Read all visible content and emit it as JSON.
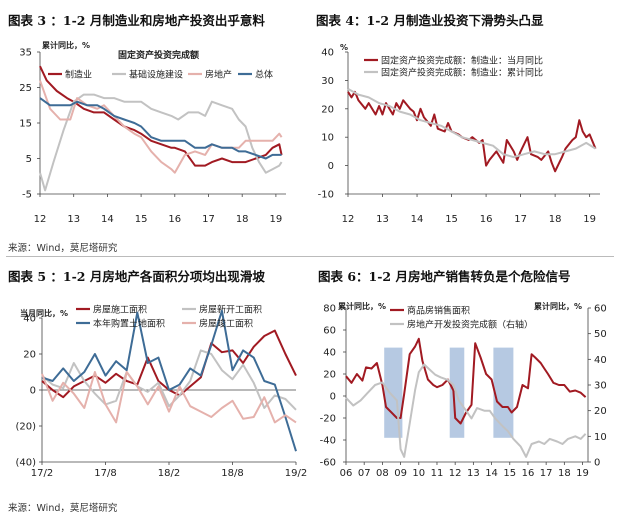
{
  "source_text": "来源：Wind，莫尼塔研究",
  "colors": {
    "red": "#a11a22",
    "gray": "#c2c2c2",
    "pink": "#e5b1ac",
    "blue": "#3e6c96",
    "band": "#9eb7d8"
  },
  "chart_data": [
    {
      "id": "fig3",
      "type": "line",
      "title": "图表 3 ：1-2 月制造业和房地产投资出乎意料",
      "subtitle": "固定资产投资完成额",
      "ylabel": "累计同比，%",
      "x_ticks": [
        "12",
        "13",
        "14",
        "15",
        "16",
        "17",
        "18",
        "19"
      ],
      "xlim": [
        2012.0,
        2019.3
      ],
      "ylim": [
        -5,
        35
      ],
      "y_ticks": [
        "-5",
        "5",
        "15",
        "25",
        "35"
      ],
      "series": [
        {
          "name": "制造业",
          "color": "#a11a22",
          "x": [
            2012.0,
            2012.2,
            2012.5,
            2012.8,
            2013.0,
            2013.3,
            2013.6,
            2013.9,
            2014.2,
            2014.5,
            2014.8,
            2015.0,
            2015.3,
            2015.6,
            2015.9,
            2016.0,
            2016.3,
            2016.6,
            2016.9,
            2017.1,
            2017.4,
            2017.7,
            2017.9,
            2018.1,
            2018.4,
            2018.7,
            2018.9,
            2019.1,
            2019.17
          ],
          "y": [
            31,
            27,
            24,
            22,
            21,
            19,
            18,
            18,
            16,
            14,
            13,
            12,
            10,
            9,
            8,
            8,
            7,
            3,
            3,
            4,
            5,
            4,
            4,
            4,
            5,
            6,
            8,
            9,
            6
          ]
        },
        {
          "name": "基础设施建设",
          "color": "#c2c2c2",
          "x": [
            2012.0,
            2012.15,
            2012.4,
            2012.7,
            2013.0,
            2013.3,
            2013.6,
            2013.9,
            2014.2,
            2014.5,
            2014.8,
            2015.0,
            2015.3,
            2015.6,
            2015.9,
            2016.1,
            2016.4,
            2016.7,
            2016.9,
            2017.1,
            2017.4,
            2017.7,
            2017.9,
            2018.1,
            2018.3,
            2018.5,
            2018.7,
            2018.9,
            2019.1,
            2019.17
          ],
          "y": [
            1,
            -4,
            4,
            13,
            21,
            23,
            23,
            22,
            22,
            21,
            21,
            21,
            19,
            18,
            17,
            16,
            18,
            18,
            17,
            21,
            20,
            19,
            16,
            14,
            8,
            4,
            1,
            2,
            3,
            4
          ]
        },
        {
          "name": "房地产",
          "color": "#e5b1ac",
          "x": [
            2012.0,
            2012.3,
            2012.6,
            2012.9,
            2013.1,
            2013.4,
            2013.7,
            2013.9,
            2014.2,
            2014.5,
            2014.8,
            2015.0,
            2015.3,
            2015.6,
            2015.9,
            2016.0,
            2016.3,
            2016.6,
            2016.9,
            2017.1,
            2017.4,
            2017.7,
            2017.9,
            2018.1,
            2018.4,
            2018.7,
            2018.9,
            2019.1,
            2019.17
          ],
          "y": [
            27,
            19,
            16,
            16,
            22,
            20,
            19,
            20,
            17,
            14,
            12,
            11,
            7,
            4,
            2,
            1,
            6,
            7,
            6,
            9,
            8,
            8,
            8,
            10,
            10,
            10,
            10,
            12,
            11
          ]
        },
        {
          "name": "总体",
          "color": "#3e6c96",
          "x": [
            2012.0,
            2012.3,
            2012.6,
            2012.9,
            2013.1,
            2013.4,
            2013.7,
            2013.9,
            2014.2,
            2014.5,
            2014.8,
            2015.0,
            2015.3,
            2015.6,
            2015.9,
            2016.0,
            2016.3,
            2016.6,
            2016.9,
            2017.1,
            2017.4,
            2017.7,
            2017.9,
            2018.1,
            2018.4,
            2018.7,
            2018.9,
            2019.1,
            2019.17
          ],
          "y": [
            22,
            20,
            20,
            20,
            21,
            20,
            20,
            19,
            17,
            16,
            15,
            14,
            11,
            10,
            10,
            10,
            10,
            8,
            8,
            9,
            8,
            8,
            7,
            7,
            6,
            5,
            6,
            6,
            6
          ]
        }
      ]
    },
    {
      "id": "fig4",
      "type": "line",
      "title": "图表 4：1-2 月制造业投资下滑势头凸显",
      "ylabel": "%",
      "x_ticks": [
        "12",
        "13",
        "14",
        "15",
        "16",
        "17",
        "18",
        "19"
      ],
      "xlim": [
        2012.0,
        2019.3
      ],
      "ylim": [
        -10,
        40
      ],
      "y_ticks": [
        "-10",
        "0",
        "10",
        "20",
        "30",
        "40"
      ],
      "series": [
        {
          "name": "固定资产投资完成额：制造业：当月同比",
          "color": "#a11a22",
          "x": [
            2012.0,
            2012.1,
            2012.2,
            2012.3,
            2012.5,
            2012.6,
            2012.8,
            2012.9,
            2013.0,
            2013.1,
            2013.3,
            2013.4,
            2013.5,
            2013.6,
            2013.8,
            2013.9,
            2014.0,
            2014.1,
            2014.2,
            2014.4,
            2014.5,
            2014.6,
            2014.8,
            2014.9,
            2015.0,
            2015.2,
            2015.3,
            2015.5,
            2015.6,
            2015.8,
            2015.9,
            2016.0,
            2016.1,
            2016.3,
            2016.4,
            2016.5,
            2016.6,
            2016.8,
            2016.9,
            2017.0,
            2017.2,
            2017.3,
            2017.5,
            2017.6,
            2017.8,
            2017.9,
            2018.0,
            2018.2,
            2018.3,
            2018.5,
            2018.6,
            2018.7,
            2018.8,
            2018.9,
            2019.0,
            2019.17
          ],
          "y": [
            26,
            24,
            26,
            23,
            20,
            22,
            18,
            21,
            18,
            22,
            18,
            22,
            20,
            23,
            20,
            19,
            16,
            20,
            17,
            14,
            18,
            13,
            12,
            15,
            12,
            11,
            10,
            9,
            10,
            8,
            9,
            0,
            2,
            5,
            3,
            1,
            9,
            5,
            2,
            5,
            10,
            4,
            3,
            2,
            5,
            1,
            -2,
            3,
            6,
            9,
            10,
            16,
            12,
            10,
            11,
            6
          ]
        },
        {
          "name": "固定资产投资完成额：制造业：累计同比",
          "color": "#c2c2c2",
          "x": [
            2012.0,
            2012.3,
            2012.6,
            2012.9,
            2013.2,
            2013.5,
            2013.8,
            2014.1,
            2014.4,
            2014.7,
            2015.0,
            2015.3,
            2015.6,
            2015.9,
            2016.2,
            2016.5,
            2016.8,
            2017.1,
            2017.4,
            2017.7,
            2018.0,
            2018.3,
            2018.6,
            2018.9,
            2019.17
          ],
          "y": [
            27,
            25,
            24,
            22,
            21,
            19,
            18,
            16,
            15,
            14,
            12,
            10,
            9,
            8,
            7,
            4,
            3,
            4,
            5,
            4,
            4,
            5,
            6,
            8,
            6
          ]
        }
      ]
    },
    {
      "id": "fig5",
      "type": "line",
      "title": "图表 5 ：1-2 月房地产各面积分项均出现滑坡",
      "ylabel": "当月同比，%",
      "x_ticks": [
        "17/2",
        "17/8",
        "18/2",
        "18/8",
        "19/2"
      ],
      "xlim": [
        0,
        24
      ],
      "ylim": [
        -40,
        40
      ],
      "y_ticks": [
        "(40)",
        "(20)",
        "0",
        "20",
        "40"
      ],
      "series": [
        {
          "name": "房屋施工面积",
          "color": "#a11a22",
          "x": [
            0,
            1,
            2,
            3,
            4,
            5,
            6,
            7,
            8,
            9,
            10,
            11,
            12,
            13,
            14,
            15,
            16,
            17,
            18,
            19,
            20,
            21,
            22,
            23,
            24
          ],
          "y": [
            5,
            0,
            -4,
            2,
            5,
            8,
            4,
            9,
            5,
            3,
            18,
            5,
            0,
            -3,
            2,
            7,
            26,
            21,
            22,
            15,
            24,
            30,
            33,
            20,
            8
          ]
        },
        {
          "name": "房屋新开工面积",
          "color": "#c2c2c2",
          "x": [
            0,
            1,
            2,
            3,
            4,
            5,
            6,
            7,
            8,
            9,
            10,
            11,
            12,
            13,
            14,
            15,
            16,
            17,
            18,
            19,
            20,
            21,
            22,
            23,
            24
          ],
          "y": [
            8,
            3,
            1,
            15,
            5,
            -2,
            -8,
            -6,
            10,
            2,
            -1,
            4,
            -9,
            -3,
            5,
            22,
            20,
            11,
            6,
            14,
            4,
            -10,
            -3,
            -5,
            -11
          ]
        },
        {
          "name": "本年购置土地面积",
          "color": "#3e6c96",
          "x": [
            0,
            1,
            2,
            3,
            4,
            5,
            6,
            7,
            8,
            9,
            10,
            11,
            12,
            13,
            14,
            15,
            16,
            17,
            18,
            19,
            20,
            21,
            22,
            23,
            24
          ],
          "y": [
            7,
            5,
            12,
            5,
            10,
            20,
            8,
            16,
            11,
            43,
            15,
            18,
            0,
            3,
            12,
            8,
            25,
            44,
            11,
            22,
            18,
            5,
            3,
            -15,
            -34
          ]
        },
        {
          "name": "房屋竣工面积",
          "color": "#e5b1ac",
          "x": [
            0,
            1,
            2,
            3,
            4,
            5,
            6,
            7,
            8,
            9,
            10,
            11,
            12,
            13,
            14,
            15,
            16,
            17,
            18,
            19,
            20,
            21,
            22,
            23,
            24
          ],
          "y": [
            9,
            -6,
            4,
            -2,
            -10,
            10,
            -8,
            -18,
            10,
            2,
            -8,
            2,
            -12,
            2,
            -9,
            -12,
            -15,
            -10,
            -6,
            -16,
            -15,
            -4,
            -18,
            -14,
            -18
          ]
        }
      ]
    },
    {
      "id": "fig6",
      "type": "line",
      "title": "图表 6：1-2 月房地产销售转负是个危险信号",
      "ylabel": "累计同比，%",
      "ylabel_right": "累计同比，%",
      "x_ticks": [
        "06",
        "07",
        "08",
        "09",
        "10",
        "11",
        "12",
        "13",
        "14",
        "15",
        "16",
        "17",
        "18",
        "19"
      ],
      "xlim": [
        2006.0,
        2019.3
      ],
      "ylim": [
        -60,
        80
      ],
      "y_ticks": [
        "-60",
        "-40",
        "-20",
        "0",
        "20",
        "40",
        "60",
        "80"
      ],
      "ylim_right": [
        0,
        60
      ],
      "y_ticks_right": [
        "0",
        "10",
        "20",
        "30",
        "40",
        "50",
        "60"
      ],
      "shaded_periods": [
        [
          2008.1,
          2009.1
        ],
        [
          2011.7,
          2012.5
        ],
        [
          2014.1,
          2015.2
        ]
      ],
      "series": [
        {
          "name": "商品房销售面积",
          "color": "#a11a22",
          "axis": "left",
          "x": [
            2006.0,
            2006.3,
            2006.6,
            2006.9,
            2007.1,
            2007.4,
            2007.7,
            2008.0,
            2008.2,
            2008.5,
            2008.8,
            2009.0,
            2009.2,
            2009.5,
            2009.8,
            2010.0,
            2010.2,
            2010.5,
            2010.8,
            2011.0,
            2011.3,
            2011.6,
            2011.9,
            2012.0,
            2012.3,
            2012.6,
            2012.9,
            2013.1,
            2013.4,
            2013.7,
            2014.0,
            2014.3,
            2014.6,
            2014.9,
            2015.1,
            2015.4,
            2015.7,
            2016.0,
            2016.2,
            2016.4,
            2016.7,
            2016.9,
            2017.1,
            2017.4,
            2017.7,
            2018.0,
            2018.3,
            2018.6,
            2018.9,
            2019.17
          ],
          "y": [
            18,
            12,
            20,
            14,
            26,
            25,
            30,
            10,
            -10,
            -15,
            -20,
            -20,
            2,
            38,
            45,
            52,
            32,
            15,
            10,
            8,
            10,
            15,
            5,
            -20,
            -25,
            -15,
            -8,
            48,
            35,
            20,
            15,
            -5,
            -10,
            -10,
            -15,
            -10,
            10,
            7,
            38,
            35,
            30,
            25,
            20,
            12,
            10,
            10,
            4,
            5,
            3,
            -1
          ]
        },
        {
          "name": "房地产开发投资完成额（右轴）",
          "color": "#c2c2c2",
          "axis": "right",
          "x": [
            2006.0,
            2006.4,
            2006.8,
            2007.2,
            2007.6,
            2008.0,
            2008.4,
            2008.8,
            2009.0,
            2009.2,
            2009.5,
            2009.8,
            2010.0,
            2010.3,
            2010.6,
            2010.9,
            2011.2,
            2011.6,
            2011.9,
            2012.2,
            2012.6,
            2012.9,
            2013.2,
            2013.6,
            2013.9,
            2014.2,
            2014.6,
            2014.9,
            2015.2,
            2015.6,
            2015.9,
            2016.2,
            2016.6,
            2016.9,
            2017.2,
            2017.6,
            2017.9,
            2018.2,
            2018.6,
            2018.9,
            2019.17
          ],
          "y": [
            25,
            22,
            24,
            27,
            30,
            31,
            27,
            24,
            5,
            2,
            15,
            28,
            35,
            38,
            36,
            34,
            33,
            32,
            30,
            24,
            20,
            17,
            21,
            20,
            20,
            17,
            14,
            12,
            9,
            6,
            2,
            7,
            8,
            7,
            9,
            8,
            7,
            9,
            10,
            9,
            11
          ]
        }
      ]
    }
  ]
}
